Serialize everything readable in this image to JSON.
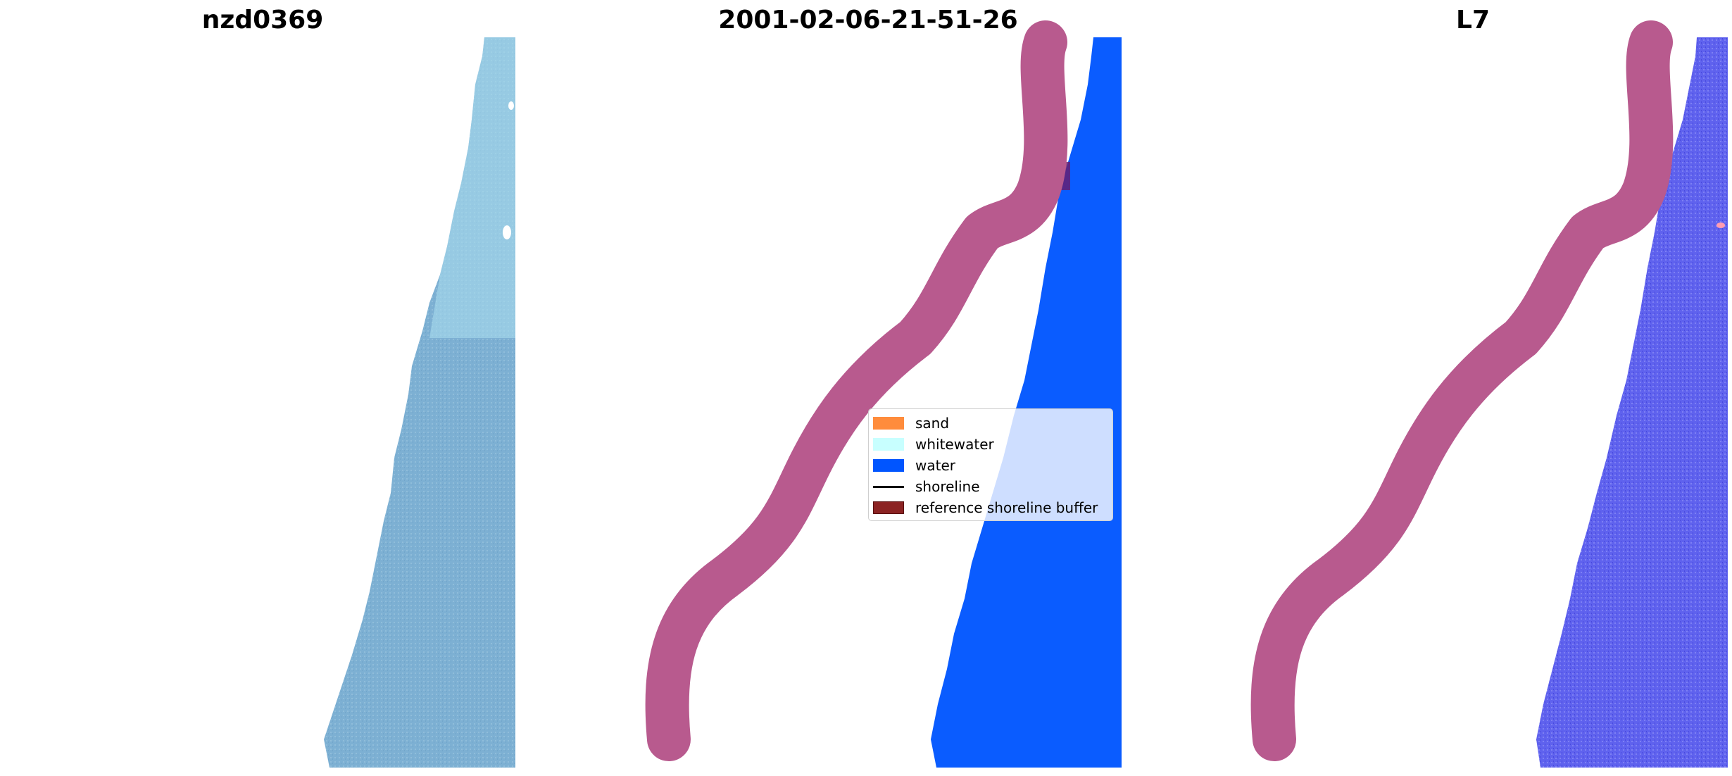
{
  "panels": [
    {
      "title": "nzd0369",
      "description": "RGB satellite image"
    },
    {
      "title": "2001-02-06-21-51-26",
      "description": "classified image"
    },
    {
      "title": "L7",
      "description": "water index image"
    }
  ],
  "legend": {
    "items": [
      {
        "label": "sand",
        "color": "#ff8c3c",
        "kind": "patch"
      },
      {
        "label": "whitewater",
        "color": "#c8ffff",
        "kind": "patch"
      },
      {
        "label": "water",
        "color": "#0055ff",
        "kind": "patch"
      },
      {
        "label": "shoreline",
        "color": "#000000",
        "kind": "line"
      },
      {
        "label": "reference shoreline buffer",
        "color": "#8b2323",
        "kind": "patch"
      }
    ]
  },
  "colors": {
    "rgb_water": "#7fb3d5",
    "classified_water": "#0a5cff",
    "index_water": "#5b5cf0",
    "buffer": "#b85a8e"
  }
}
